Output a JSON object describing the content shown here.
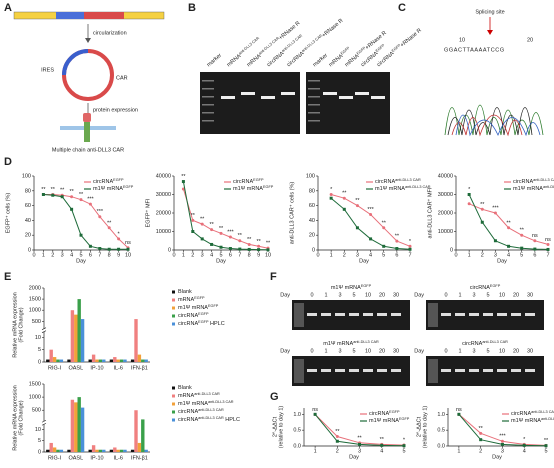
{
  "panel_labels": [
    "A",
    "B",
    "C",
    "D",
    "E",
    "F",
    "G"
  ],
  "panel_a": {
    "steps": [
      "circularization",
      "protein expression"
    ],
    "ring_labels": [
      "IRES",
      "CAR"
    ],
    "bottom": "Multiple chain anti-DLL3 CAR"
  },
  "panel_b": {
    "lanes": [
      {
        "base": "marker"
      },
      {
        "base": "mRNA",
        "sup": "anti-DLL3 CAR"
      },
      {
        "base": "mRNA",
        "sup": "anti-DLL3 CAR",
        "suffix": "+RNase R"
      },
      {
        "base": "circRNA",
        "sup": "anti-DLL3 CAR"
      },
      {
        "base": "circRNA",
        "sup": "anti-DLL3 CAR",
        "suffix": "+RNase R"
      },
      {
        "base": "marker"
      },
      {
        "base": "mRNA",
        "sup": "EGFP"
      },
      {
        "base": "mRNA",
        "sup": "EGFP",
        "suffix": "+RNase R"
      },
      {
        "base": "circRNA",
        "sup": "EGFP"
      },
      {
        "base": "circRNA",
        "sup": "EGFP",
        "suffix": "+RNase R"
      }
    ]
  },
  "panel_c": {
    "title": "Splicing site",
    "positions": [
      10,
      20
    ],
    "sequence": "GGACTTAAAATCCG"
  },
  "panel_f": {
    "day_label": "Day",
    "days": [
      0,
      1,
      3,
      5,
      10,
      20,
      30
    ],
    "gels": [
      {
        "base": "m1Ψ mRNA",
        "sup": "EGFP"
      },
      {
        "base": "circRNA",
        "sup": "EGFP"
      },
      {
        "base": "m1Ψ mRNA",
        "sup": "anti-DLL3 CAR"
      },
      {
        "base": "circRNA",
        "sup": "anti-DLL3 CAR"
      }
    ]
  },
  "chart_data": [
    {
      "type": "line",
      "ylabel": [
        "EGFP⁺ cells (%)"
      ],
      "xlabel": "Day",
      "legend": "upper right",
      "grid": false,
      "x": [
        1,
        2,
        3,
        4,
        5,
        6,
        7,
        8,
        9,
        10
      ],
      "xlim": [
        0,
        10
      ],
      "xticks": [
        0,
        1,
        2,
        3,
        4,
        5,
        6,
        7,
        8,
        9,
        10
      ],
      "ylim": [
        0,
        100
      ],
      "yticks": [
        0,
        20,
        40,
        60,
        80,
        100
      ],
      "significance": [
        "**",
        "**",
        "**",
        "**",
        "**",
        "***",
        "***",
        "**",
        "*",
        "ns"
      ],
      "series": [
        {
          "name": "circRNA",
          "name_sup": "EGFP",
          "color": "#e8707a",
          "values": [
            75,
            75,
            74,
            72,
            68,
            62,
            45,
            30,
            15,
            3
          ]
        },
        {
          "name": "m1Ψ mRNA",
          "name_sup": "EGFP",
          "color": "#1e6b3a",
          "values": [
            75,
            74,
            72,
            55,
            20,
            5,
            2,
            1,
            1,
            1
          ]
        }
      ]
    },
    {
      "type": "line",
      "ylabel": [
        "EGFP⁺ MFI"
      ],
      "xlabel": "Day",
      "legend": "upper right",
      "grid": false,
      "x": [
        1,
        2,
        3,
        4,
        5,
        6,
        7,
        8,
        9,
        10
      ],
      "xlim": [
        0,
        10
      ],
      "xticks": [
        0,
        1,
        2,
        3,
        4,
        5,
        6,
        7,
        8,
        9,
        10
      ],
      "ylim": [
        0,
        40000
      ],
      "yticks": [
        0,
        10000,
        20000,
        30000,
        40000
      ],
      "significance": [
        "**",
        "**",
        "**",
        "**",
        "**",
        "***",
        "**",
        "**",
        "**",
        "**"
      ],
      "series": [
        {
          "name": "circRNA",
          "name_sup": "EGFP",
          "color": "#e8707a",
          "values": [
            33000,
            16000,
            14000,
            11000,
            9000,
            7000,
            5000,
            3000,
            2000,
            1000
          ]
        },
        {
          "name": "m1Ψ mRNA",
          "name_sup": "EGFP",
          "color": "#1e6b3a",
          "values": [
            37000,
            10000,
            6000,
            3000,
            1500,
            800,
            500,
            300,
            200,
            100
          ]
        }
      ]
    },
    {
      "type": "line",
      "ylabel": [
        "anti-DLL3 CAR⁺ cells (%)"
      ],
      "xlabel": "Day",
      "legend": "upper right",
      "grid": false,
      "x": [
        1,
        2,
        3,
        4,
        5,
        6,
        7
      ],
      "xlim": [
        0,
        7
      ],
      "xticks": [
        0,
        1,
        2,
        3,
        4,
        5,
        6,
        7
      ],
      "ylim": [
        0,
        100
      ],
      "yticks": [
        0,
        20,
        40,
        60,
        80,
        100
      ],
      "significance": [
        "*",
        "**",
        "**",
        "***",
        "**",
        "**",
        "*"
      ],
      "series": [
        {
          "name": "circRNA",
          "name_sup": "anti-DLL3 CAR",
          "color": "#e8707a",
          "values": [
            75,
            70,
            60,
            48,
            30,
            12,
            5
          ]
        },
        {
          "name": "m1Ψ mRNA",
          "name_sup": "anti-DLL3 CAR",
          "color": "#1e6b3a",
          "values": [
            70,
            55,
            30,
            15,
            5,
            2,
            1
          ]
        }
      ]
    },
    {
      "type": "line",
      "ylabel": [
        "anti-DLL3 CAR⁺ MFI"
      ],
      "xlabel": "Day",
      "legend": "upper right",
      "grid": false,
      "x": [
        1,
        2,
        3,
        4,
        5,
        6,
        7
      ],
      "xlim": [
        0,
        7
      ],
      "xticks": [
        0,
        1,
        2,
        3,
        4,
        5,
        6,
        7
      ],
      "ylim": [
        0,
        40000
      ],
      "yticks": [
        0,
        10000,
        20000,
        30000,
        40000
      ],
      "significance": [
        "*",
        "**",
        "***",
        "**",
        "**",
        "ns",
        "ns"
      ],
      "series": [
        {
          "name": "circRNA",
          "name_sup": "anti-DLL3 CAR",
          "color": "#e8707a",
          "values": [
            25000,
            22000,
            20000,
            12000,
            8000,
            5000,
            3000
          ]
        },
        {
          "name": "m1Ψ mRNA",
          "name_sup": "anti-DLL3 CAR",
          "color": "#1e6b3a",
          "values": [
            30000,
            15000,
            5000,
            2000,
            1000,
            500,
            300
          ]
        }
      ]
    },
    {
      "type": "bar",
      "ylabel": [
        "Relative mRNA expression",
        "(Fold Change)"
      ],
      "legend": "right",
      "categories": [
        "RIG-I",
        "OASL",
        "IP-10",
        "IL-6",
        "IFN-β1"
      ],
      "ylim": [
        0,
        2000
      ],
      "ybreak": [
        12,
        200
      ],
      "yticks": [
        0,
        5,
        10,
        500,
        1000,
        1500,
        2000
      ],
      "series": [
        {
          "name": "Blank",
          "color": "#111111",
          "values": [
            1,
            1,
            1,
            1,
            1
          ]
        },
        {
          "name": "mRNA",
          "name_sup": "EGFP",
          "color": "#f08080",
          "values": [
            5,
            1000,
            3,
            2,
            600
          ]
        },
        {
          "name": "m1Ψ mRNA",
          "name_sup": "EGFP",
          "color": "#f2a13a",
          "values": [
            2,
            800,
            1,
            1,
            3
          ]
        },
        {
          "name": "circRNA",
          "name_sup": "EGFP",
          "color": "#3aa04a",
          "values": [
            1,
            1500,
            1,
            1,
            1
          ]
        },
        {
          "name": "circRNA",
          "name_sup": "EGFP",
          "name_suffix": " HPLC",
          "color": "#4a90d9",
          "values": [
            1,
            600,
            1,
            1,
            1
          ]
        }
      ]
    },
    {
      "type": "bar",
      "ylabel": [
        "Relative mRNA expression",
        "(Fold Change)"
      ],
      "legend": "right",
      "categories": [
        "RIG-I",
        "OASL",
        "IP-10",
        "IL-6",
        "IFN-β1"
      ],
      "ylim": [
        0,
        1500
      ],
      "ybreak": [
        12,
        100
      ],
      "yticks": [
        0,
        5,
        10,
        500,
        1000,
        1500
      ],
      "series": [
        {
          "name": "Blank",
          "color": "#111111",
          "values": [
            1,
            1,
            1,
            1,
            1
          ]
        },
        {
          "name": "mRNA",
          "name_sup": "anti-DLL3 CAR",
          "color": "#f08080",
          "values": [
            4,
            900,
            3,
            2,
            500
          ]
        },
        {
          "name": "m1Ψ mRNA",
          "name_sup": "anti-DLL3 CAR",
          "color": "#f2a13a",
          "values": [
            2,
            800,
            1,
            1,
            4
          ]
        },
        {
          "name": "circRNA",
          "name_sup": "anti-DLL3 CAR",
          "color": "#3aa04a",
          "values": [
            1,
            1000,
            1,
            1,
            150
          ]
        },
        {
          "name": "circRNA",
          "name_sup": "anti-DLL3 CAR",
          "name_suffix": " HPLC",
          "color": "#4a90d9",
          "values": [
            1,
            600,
            1,
            1,
            1
          ]
        }
      ]
    },
    {
      "type": "line",
      "ylabel": [
        "2^-ΔΔCt",
        "(relative to day 1)"
      ],
      "xlabel": "Day",
      "legend": "upper right",
      "grid": false,
      "x": [
        1,
        2,
        3,
        4,
        5
      ],
      "xlim": [
        0.5,
        5
      ],
      "xticks": [
        1,
        2,
        3,
        4,
        5
      ],
      "ylim": [
        0,
        1.2
      ],
      "yticks": [
        {
          "value": 0,
          "label": "0.0"
        },
        {
          "value": 0.5,
          "label": "0.5"
        },
        {
          "value": 1,
          "label": "1.0"
        }
      ],
      "significance": [
        "ns",
        "**",
        "**",
        "**",
        "*"
      ],
      "series": [
        {
          "name": "circRNA",
          "name_sup": "EGFP",
          "color": "#e8707a",
          "values": [
            1.0,
            0.3,
            0.1,
            0.05,
            0.03
          ]
        },
        {
          "name": "m1Ψ mRNA",
          "name_sup": "EGFP",
          "color": "#1e6b3a",
          "values": [
            1.0,
            0.15,
            0.05,
            0.02,
            0.01
          ]
        }
      ]
    },
    {
      "type": "line",
      "ylabel": [
        "2^-ΔΔCt",
        "(relative to day 1)"
      ],
      "xlabel": "Day",
      "legend": "upper right",
      "grid": false,
      "x": [
        1,
        2,
        3,
        4,
        5
      ],
      "xlim": [
        0.5,
        5
      ],
      "xticks": [
        1,
        2,
        3,
        4,
        5
      ],
      "ylim": [
        0,
        1.2
      ],
      "yticks": [
        {
          "value": 0,
          "label": "0.0"
        },
        {
          "value": 0.5,
          "label": "0.5"
        },
        {
          "value": 1,
          "label": "1.0"
        }
      ],
      "significance": [
        "ns",
        "**",
        "***",
        "*",
        "**"
      ],
      "series": [
        {
          "name": "circRNA",
          "name_sup": "anti-DLL3 CAR",
          "color": "#e8707a",
          "values": [
            1.0,
            0.4,
            0.15,
            0.05,
            0.02
          ]
        },
        {
          "name": "m1Ψ mRNA",
          "name_sup": "anti-DLL3 CAR",
          "color": "#1e6b3a",
          "values": [
            1.0,
            0.2,
            0.05,
            0.02,
            0.01
          ]
        }
      ]
    }
  ]
}
